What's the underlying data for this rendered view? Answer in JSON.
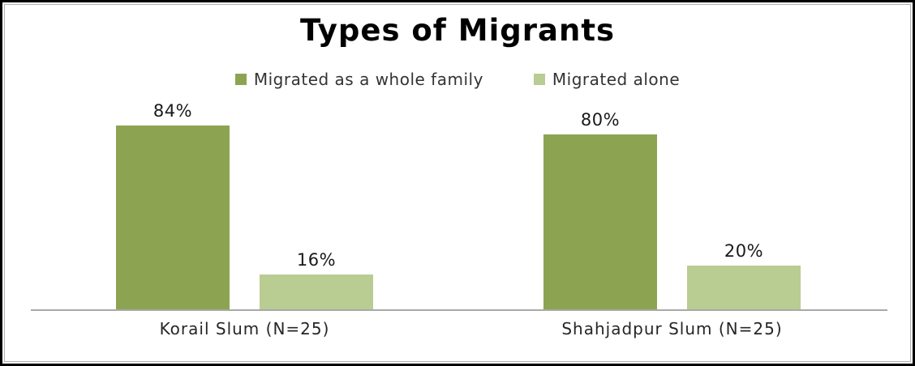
{
  "chart_data": {
    "type": "bar",
    "title": "Types of Migrants",
    "categories": [
      "Korail Slum (N=25)",
      "Shahjadpur Slum (N=25)"
    ],
    "series": [
      {
        "name": "Migrated as a whole family",
        "values": [
          84,
          80
        ],
        "data_labels": [
          "84%",
          "80%"
        ],
        "color": "#8CA452"
      },
      {
        "name": "Migrated alone",
        "values": [
          16,
          20
        ],
        "data_labels": [
          "16%",
          "20%"
        ],
        "color": "#B9CC92"
      }
    ],
    "ylim": [
      0,
      100
    ],
    "unit": "percent",
    "grid": false,
    "legend_position": "top",
    "y_axis_visible": false,
    "axis_line_color": "#A9A9A9",
    "label_text_color": "#262626",
    "title_color": "#000000"
  }
}
